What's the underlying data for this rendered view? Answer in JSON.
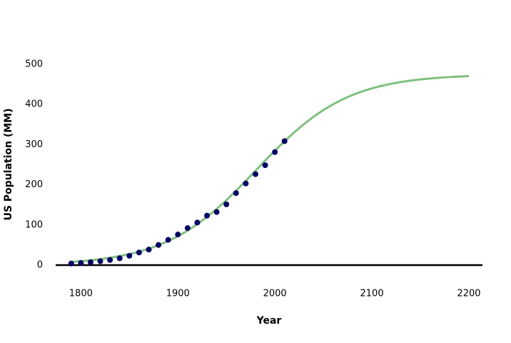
{
  "chart_data": {
    "type": "scatter",
    "x_label": "Year",
    "y_label": "US Population (MM)",
    "xlim": [
      1774,
      2214
    ],
    "ylim": [
      0,
      500
    ],
    "xticks": [
      1800,
      1900,
      2000,
      2100,
      2200
    ],
    "yticks": [
      0,
      100,
      200,
      300,
      400,
      500
    ],
    "grid": false,
    "series": [
      {
        "type": "line",
        "color": "#80c080",
        "x": [
          1790,
          1800,
          1810,
          1820,
          1830,
          1840,
          1850,
          1860,
          1870,
          1880,
          1890,
          1900,
          1910,
          1920,
          1930,
          1940,
          1950,
          1960,
          1970,
          1980,
          1990,
          2000,
          2010,
          2020,
          2030,
          2040,
          2050,
          2060,
          2070,
          2080,
          2090,
          2100,
          2110,
          2120,
          2130,
          2140,
          2150,
          2160,
          2170,
          2180,
          2190,
          2200
        ],
        "values": [
          8.0,
          9.9,
          12.1,
          14.9,
          18.3,
          22.5,
          27.5,
          33.5,
          40.8,
          49.5,
          59.8,
          71.9,
          85.8,
          101.8,
          119.9,
          140.0,
          161.8,
          185.3,
          209.8,
          235.0,
          260.3,
          285.0,
          308.7,
          330.8,
          351.3,
          369.8,
          386.2,
          400.5,
          413.0,
          423.6,
          432.6,
          440.1,
          446.4,
          451.6,
          455.9,
          459.5,
          462.4,
          464.7,
          466.7,
          468.3,
          469.5,
          470.6
        ]
      },
      {
        "type": "scatter",
        "color": "#000066",
        "x": [
          1790,
          1800,
          1810,
          1820,
          1830,
          1840,
          1850,
          1860,
          1870,
          1880,
          1890,
          1900,
          1910,
          1920,
          1930,
          1940,
          1950,
          1960,
          1970,
          1980,
          1990,
          2000,
          2010
        ],
        "values": [
          3.9,
          5.3,
          7.2,
          9.6,
          12.9,
          17.1,
          23.2,
          31.4,
          38.6,
          50.2,
          62.9,
          76.2,
          92.2,
          106.0,
          123.2,
          132.2,
          151.3,
          179.3,
          203.3,
          226.5,
          248.7,
          281.4,
          308.7
        ]
      }
    ]
  }
}
